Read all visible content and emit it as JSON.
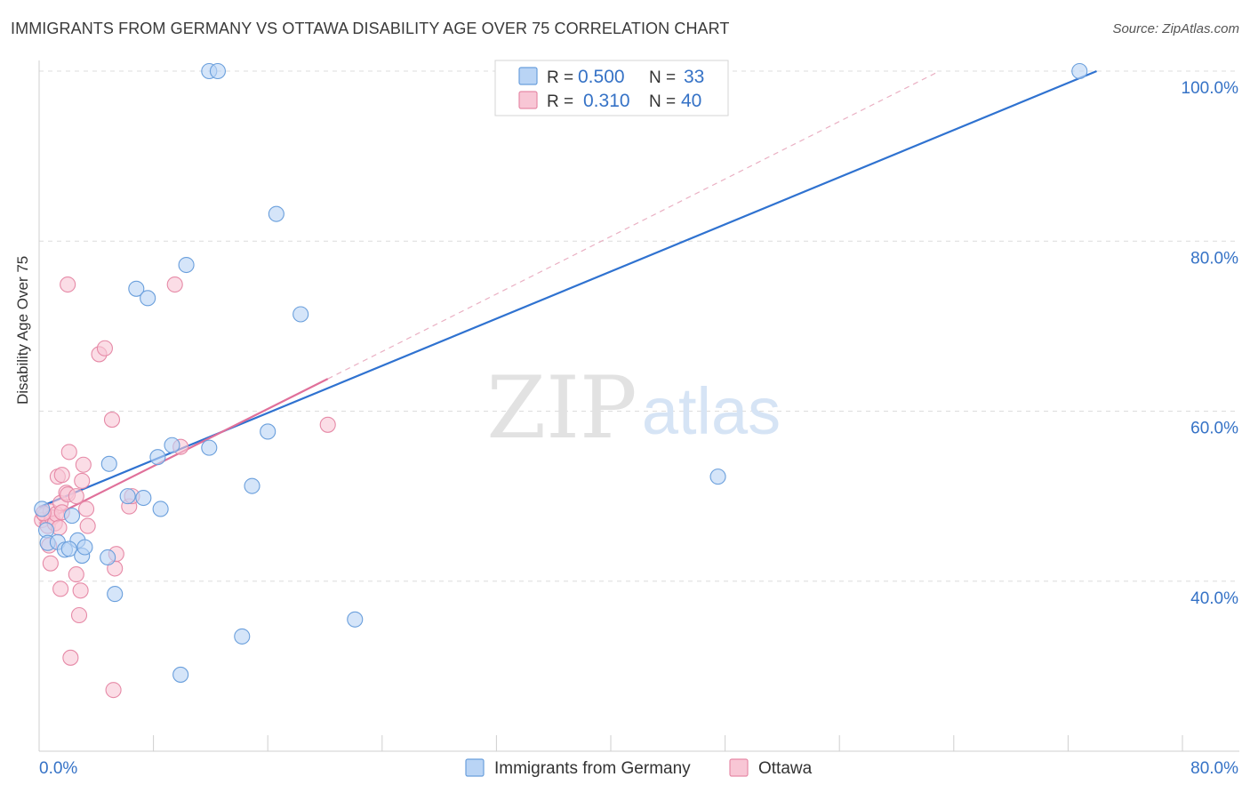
{
  "title": "IMMIGRANTS FROM GERMANY VS OTTAWA DISABILITY AGE OVER 75 CORRELATION CHART",
  "source": "Source: ZipAtlas.com",
  "watermark": {
    "zip": "ZIP",
    "atlas": "atlas"
  },
  "legend_box": {
    "rows": [
      {
        "r_label": "R =",
        "r_value": "0.500",
        "n_label": "N =",
        "n_value": "33",
        "color": "#a9c8f0"
      },
      {
        "r_label": "R =",
        "r_value": "0.310",
        "n_label": "N =",
        "n_value": "40",
        "color": "#f5b8cb"
      }
    ]
  },
  "chart_data": {
    "type": "scatter",
    "xlabel": "",
    "ylabel": "Disability Age Over 75",
    "xlim": [
      0,
      80
    ],
    "ylim": [
      20,
      100
    ],
    "x_tick_labels": [
      {
        "value": 0,
        "label": "0.0%"
      },
      {
        "value": 80,
        "label": "80.0%"
      }
    ],
    "y_tick_labels": [
      {
        "value": 100,
        "label": "100.0%"
      },
      {
        "value": 80,
        "label": "80.0%"
      },
      {
        "value": 60,
        "label": "60.0%"
      },
      {
        "value": 40,
        "label": "40.0%"
      }
    ],
    "series": [
      {
        "name": "Immigrants from Germany",
        "fill": "#b9d4f5",
        "stroke": "#6a9fdc",
        "line_color": "#2f72d0",
        "trend": {
          "x0": 0,
          "y0": 48.7,
          "x1": 74,
          "y1": 100
        },
        "points": [
          [
            0.2,
            48.5
          ],
          [
            0.5,
            46.0
          ],
          [
            0.6,
            44.5
          ],
          [
            1.3,
            44.6
          ],
          [
            1.8,
            43.7
          ],
          [
            2.3,
            47.7
          ],
          [
            2.7,
            44.8
          ],
          [
            2.1,
            43.8
          ],
          [
            3.0,
            43.0
          ],
          [
            3.2,
            44.0
          ],
          [
            4.8,
            42.8
          ],
          [
            4.9,
            53.8
          ],
          [
            5.3,
            38.5
          ],
          [
            6.2,
            50.0
          ],
          [
            6.8,
            74.4
          ],
          [
            7.6,
            73.3
          ],
          [
            7.3,
            49.8
          ],
          [
            8.3,
            54.6
          ],
          [
            8.5,
            48.5
          ],
          [
            9.3,
            56.0
          ],
          [
            9.9,
            29.0
          ],
          [
            10.3,
            77.2
          ],
          [
            11.9,
            100.0
          ],
          [
            11.9,
            55.7
          ],
          [
            12.5,
            100.0
          ],
          [
            14.2,
            33.5
          ],
          [
            14.9,
            51.2
          ],
          [
            16.0,
            57.6
          ],
          [
            16.6,
            83.2
          ],
          [
            18.3,
            71.4
          ],
          [
            22.1,
            35.5
          ],
          [
            47.5,
            52.3
          ],
          [
            72.8,
            100.0
          ]
        ]
      },
      {
        "name": "Ottawa",
        "fill": "#f8c6d5",
        "stroke": "#e68aa7",
        "line_color": "#e0709a",
        "trend": {
          "x0": 0,
          "y0": 46.8,
          "x1": 20.2,
          "y1": 63.8
        },
        "dash": {
          "x0": 20.2,
          "y0": 63.8,
          "x1": 63,
          "y1": 100
        },
        "points": [
          [
            0.2,
            47.2
          ],
          [
            0.4,
            47.8
          ],
          [
            0.6,
            46.5
          ],
          [
            0.8,
            48.2
          ],
          [
            0.9,
            47.5
          ],
          [
            1.1,
            46.8
          ],
          [
            0.7,
            44.2
          ],
          [
            0.8,
            42.1
          ],
          [
            1.2,
            47.9
          ],
          [
            1.3,
            52.3
          ],
          [
            1.5,
            49.2
          ],
          [
            1.6,
            48.1
          ],
          [
            1.4,
            46.3
          ],
          [
            1.5,
            39.1
          ],
          [
            1.6,
            52.5
          ],
          [
            1.9,
            50.4
          ],
          [
            2.0,
            50.2
          ],
          [
            2.1,
            55.2
          ],
          [
            2.2,
            31.0
          ],
          [
            2.6,
            40.8
          ],
          [
            2.9,
            38.9
          ],
          [
            2.6,
            50.0
          ],
          [
            2.8,
            36.0
          ],
          [
            3.0,
            51.8
          ],
          [
            3.1,
            53.7
          ],
          [
            3.3,
            48.5
          ],
          [
            3.4,
            46.5
          ],
          [
            2.0,
            74.9
          ],
          [
            4.2,
            66.7
          ],
          [
            4.6,
            67.4
          ],
          [
            5.1,
            59.0
          ],
          [
            5.2,
            27.2
          ],
          [
            5.3,
            41.5
          ],
          [
            5.4,
            43.2
          ],
          [
            6.3,
            48.8
          ],
          [
            6.5,
            50.0
          ],
          [
            9.5,
            74.9
          ],
          [
            9.9,
            55.8
          ],
          [
            20.2,
            58.4
          ],
          [
            0.3,
            48.0
          ]
        ]
      }
    ]
  },
  "bottom_legend": [
    {
      "label": "Immigrants from Germany",
      "color": "#b9d4f5",
      "stroke": "#6a9fdc"
    },
    {
      "label": "Ottawa",
      "color": "#f8c6d5",
      "stroke": "#e68aa7"
    }
  ]
}
